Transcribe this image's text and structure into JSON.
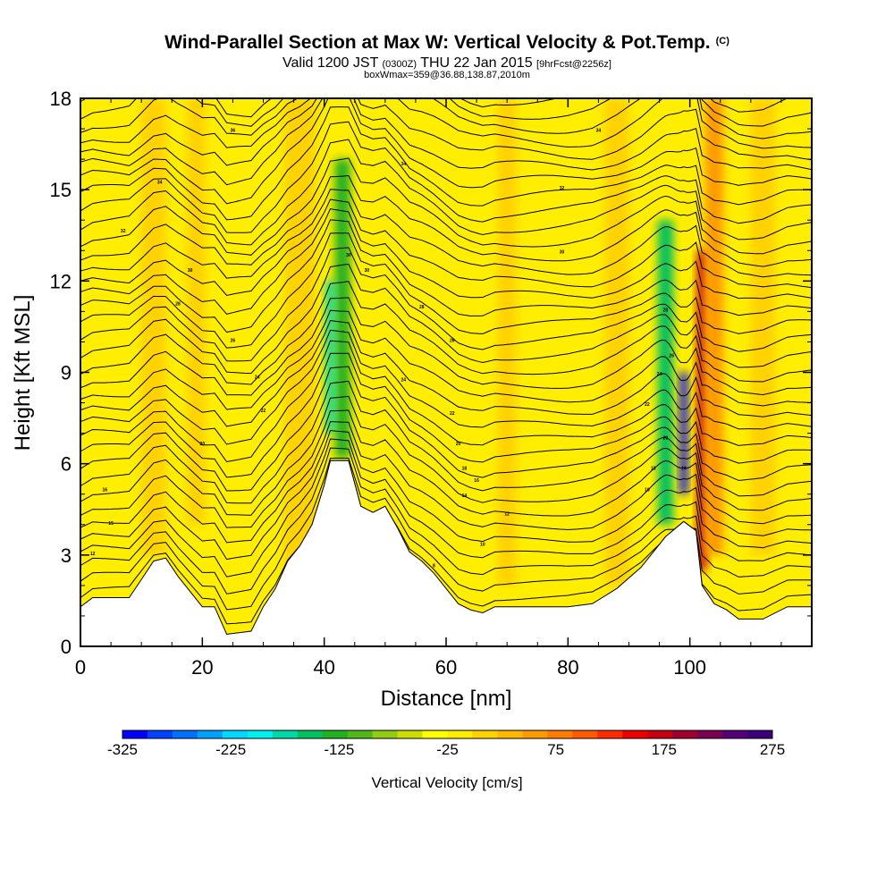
{
  "header": {
    "title": "Wind-Parallel Section at Max W: Vertical Velocity & Pot.Temp.",
    "title_mark": "(C)",
    "valid_prefix": "Valid 1200 JST",
    "valid_utc": "(0300Z)",
    "valid_date": "THU 22 Jan 2015",
    "forecast": "[9hrFcst@2256z]",
    "box_info": "boxWmax=359@36.88,138.87,2010m"
  },
  "chart_data": {
    "type": "heatmap",
    "xlabel": "Distance [nm]",
    "ylabel": "Height [Kft MSL]",
    "xlim": [
      0,
      120
    ],
    "ylim": [
      0,
      18
    ],
    "x_ticks": [
      0,
      20,
      40,
      60,
      80,
      100
    ],
    "y_ticks": [
      0,
      3,
      6,
      9,
      12,
      15,
      18
    ],
    "background_value_cm_s": 0,
    "terrain_kft": [
      [
        0,
        1.3
      ],
      [
        2,
        1.6
      ],
      [
        8,
        1.6
      ],
      [
        10,
        2.2
      ],
      [
        12,
        2.8
      ],
      [
        14,
        2.9
      ],
      [
        16,
        2.3
      ],
      [
        18,
        1.8
      ],
      [
        20,
        1.3
      ],
      [
        22,
        1.3
      ],
      [
        24,
        0.4
      ],
      [
        28,
        0.5
      ],
      [
        30,
        1.3
      ],
      [
        32,
        1.9
      ],
      [
        34,
        2.8
      ],
      [
        36,
        3.3
      ],
      [
        38,
        4.0
      ],
      [
        40,
        5.3
      ],
      [
        41,
        6.1
      ],
      [
        44,
        6.1
      ],
      [
        46,
        4.6
      ],
      [
        48,
        4.4
      ],
      [
        50,
        4.6
      ],
      [
        52,
        3.9
      ],
      [
        54,
        3.1
      ],
      [
        56,
        2.8
      ],
      [
        58,
        2.4
      ],
      [
        60,
        1.9
      ],
      [
        62,
        1.4
      ],
      [
        64,
        1.2
      ],
      [
        66,
        1.1
      ],
      [
        68,
        1.3
      ],
      [
        72,
        1.3
      ],
      [
        76,
        1.3
      ],
      [
        80,
        1.3
      ],
      [
        84,
        1.4
      ],
      [
        88,
        1.9
      ],
      [
        92,
        2.6
      ],
      [
        96,
        3.6
      ],
      [
        99,
        4.1
      ],
      [
        101,
        3.8
      ],
      [
        102,
        2.0
      ],
      [
        104,
        1.4
      ],
      [
        106,
        1.2
      ],
      [
        108,
        0.9
      ],
      [
        112,
        0.9
      ],
      [
        116,
        1.3
      ],
      [
        120,
        1.3
      ]
    ],
    "velocity_features": [
      {
        "x": 12,
        "y_bottom": 3,
        "y_top": 18,
        "width": 4,
        "value": 40
      },
      {
        "x": 19,
        "y_bottom": 4,
        "y_top": 18,
        "width": 3,
        "value": 35
      },
      {
        "x": 36,
        "y_bottom": 2,
        "y_top": 18,
        "width": 5,
        "value": 40
      },
      {
        "x": 43,
        "y_bottom": 6.2,
        "y_top": 16,
        "width": 2.5,
        "value": -120
      },
      {
        "x": 41,
        "y_bottom": 7,
        "y_top": 12,
        "width": 1.5,
        "value": -160
      },
      {
        "x": 70,
        "y_bottom": 2,
        "y_top": 18,
        "width": 3,
        "value": 30
      },
      {
        "x": 88,
        "y_bottom": 2,
        "y_top": 18,
        "width": 4,
        "value": 40
      },
      {
        "x": 96,
        "y_bottom": 4,
        "y_top": 14,
        "width": 2.5,
        "value": -130
      },
      {
        "x": 99,
        "y_bottom": 5,
        "y_top": 9,
        "width": 1.2,
        "value": -325
      },
      {
        "x": 102,
        "y_bottom": 2.5,
        "y_top": 13,
        "width": 1.6,
        "value": 210
      },
      {
        "x": 104,
        "y_bottom": 3,
        "y_top": 18,
        "width": 3,
        "value": 90
      },
      {
        "x": 112,
        "y_bottom": 3,
        "y_top": 18,
        "width": 4,
        "value": 40
      }
    ],
    "theta_contours": {
      "count": 36,
      "base_kft": 1.6,
      "spacing_kft": 0.47,
      "labels": [
        {
          "x": 2,
          "y": 3.0,
          "text": "12"
        },
        {
          "x": 5,
          "y": 4.0,
          "text": "15"
        },
        {
          "x": 4,
          "y": 5.1,
          "text": "16"
        },
        {
          "x": 20,
          "y": 6.6,
          "text": "20"
        },
        {
          "x": 30,
          "y": 7.7,
          "text": "22"
        },
        {
          "x": 29,
          "y": 8.8,
          "text": "24"
        },
        {
          "x": 25,
          "y": 10.0,
          "text": "26"
        },
        {
          "x": 16,
          "y": 11.2,
          "text": "28"
        },
        {
          "x": 18,
          "y": 12.3,
          "text": "30"
        },
        {
          "x": 7,
          "y": 13.6,
          "text": "32"
        },
        {
          "x": 13,
          "y": 15.2,
          "text": "34"
        },
        {
          "x": 25,
          "y": 16.9,
          "text": "36"
        },
        {
          "x": 44,
          "y": 12.8,
          "text": "30"
        },
        {
          "x": 47,
          "y": 12.3,
          "text": "30"
        },
        {
          "x": 56,
          "y": 11.1,
          "text": "28"
        },
        {
          "x": 53,
          "y": 8.7,
          "text": "24"
        },
        {
          "x": 61,
          "y": 10.0,
          "text": "26"
        },
        {
          "x": 53,
          "y": 15.8,
          "text": "34"
        },
        {
          "x": 61,
          "y": 7.6,
          "text": "22"
        },
        {
          "x": 62,
          "y": 6.6,
          "text": "20"
        },
        {
          "x": 63,
          "y": 5.8,
          "text": "18"
        },
        {
          "x": 65,
          "y": 5.4,
          "text": "16"
        },
        {
          "x": 63,
          "y": 4.9,
          "text": "14"
        },
        {
          "x": 70,
          "y": 4.3,
          "text": "12"
        },
        {
          "x": 66,
          "y": 3.3,
          "text": "10"
        },
        {
          "x": 58,
          "y": 2.6,
          "text": "8"
        },
        {
          "x": 79,
          "y": 12.9,
          "text": "30"
        },
        {
          "x": 79,
          "y": 15.0,
          "text": "32"
        },
        {
          "x": 85,
          "y": 16.9,
          "text": "34"
        },
        {
          "x": 96,
          "y": 11.0,
          "text": "28"
        },
        {
          "x": 97,
          "y": 9.5,
          "text": "26"
        },
        {
          "x": 95,
          "y": 8.9,
          "text": "24"
        },
        {
          "x": 93,
          "y": 7.9,
          "text": "22"
        },
        {
          "x": 96,
          "y": 6.8,
          "text": "20"
        },
        {
          "x": 94,
          "y": 5.8,
          "text": "18"
        },
        {
          "x": 93,
          "y": 5.1,
          "text": "16"
        },
        {
          "x": 99,
          "y": 5.8,
          "text": "14"
        }
      ]
    },
    "colorbar": {
      "title": "Vertical Velocity [cm/s]",
      "min": -325,
      "max": 275,
      "step": 25,
      "tick_labels": [
        "-325",
        "-225",
        "-125",
        "-25",
        "75",
        "175",
        "275"
      ],
      "colors": [
        "#0000ff",
        "#0040ff",
        "#0070ff",
        "#00a0ff",
        "#00d8ff",
        "#00f0f0",
        "#00d8a8",
        "#00c060",
        "#20b020",
        "#50b818",
        "#90cc10",
        "#ccdd00",
        "#ffff00",
        "#ffee00",
        "#ffd200",
        "#ffb800",
        "#ff9a00",
        "#ff7c00",
        "#ff5a00",
        "#ff2a00",
        "#ee0000",
        "#c80010",
        "#a00030",
        "#7a0050",
        "#560078",
        "#3c007a"
      ]
    }
  }
}
